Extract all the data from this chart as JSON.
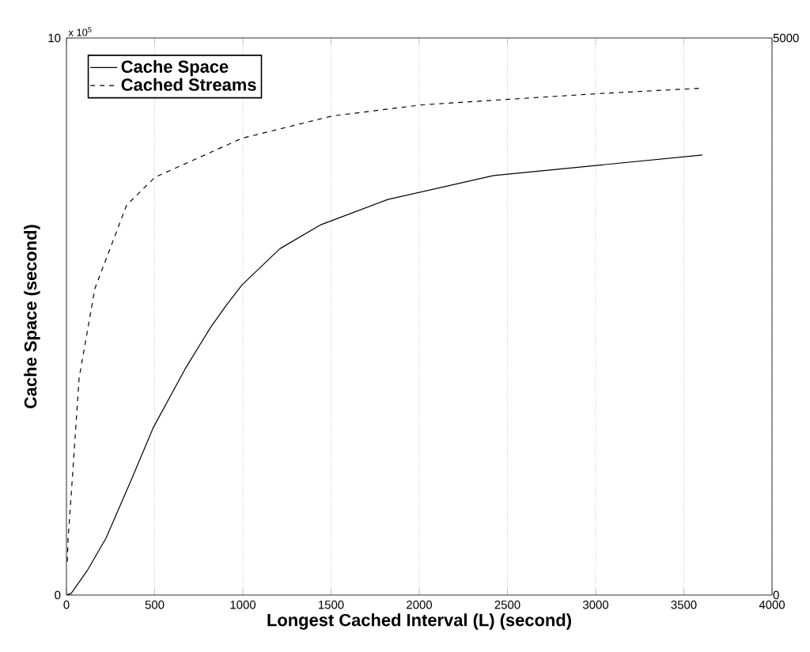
{
  "chart_data": {
    "type": "line",
    "xlabel": "Longest Cached Interval (L) (second)",
    "ylabel": "Cache Space (second)",
    "annotations": [
      "x 10$^{5}$"
    ],
    "xlim": [
      0,
      4000
    ],
    "xticks": [
      0,
      500,
      1000,
      1500,
      2000,
      2500,
      3000,
      3500,
      4000
    ],
    "ylim": [
      0,
      10
    ],
    "yticks": [
      0,
      10
    ],
    "y2lim": [
      0,
      5000
    ],
    "y2ticks": [
      0,
      5000
    ],
    "grid": "x",
    "legend": "top left",
    "series": [
      {
        "name": "Cache Space",
        "color": "#000000",
        "line_style": "solid",
        "x": [
          0,
          27,
          120,
          224,
          368,
          493,
          673,
          816,
          906,
          996,
          1211,
          1444,
          1821,
          2421,
          3605
        ],
        "values": [
          0,
          0.03,
          0.45,
          1.02,
          2.07,
          3.01,
          4.06,
          4.8,
          5.2,
          5.57,
          6.22,
          6.65,
          7.1,
          7.53,
          7.9
        ]
      },
      {
        "name": "Cached Streams",
        "color": "#000000",
        "line_style": "dashed",
        "axis": "y2",
        "x": [
          5,
          9,
          27,
          72,
          161,
          341,
          502,
          996,
          1507,
          2018,
          2511,
          3013,
          3605
        ],
        "values": [
          300,
          500,
          900,
          1950,
          2750,
          3500,
          3750,
          4100,
          4300,
          4400,
          4450,
          4500,
          4550
        ]
      }
    ]
  }
}
